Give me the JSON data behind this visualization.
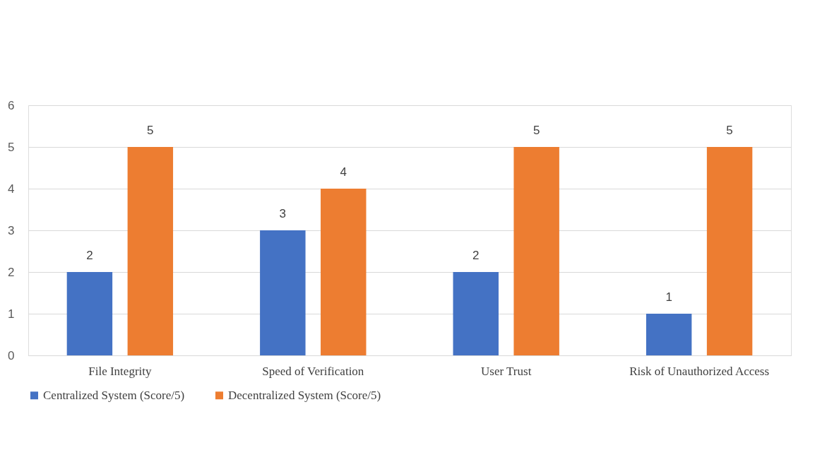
{
  "chart_data": {
    "type": "bar",
    "categories": [
      "File Integrity",
      "Speed of Verification",
      "User Trust",
      "Risk of Unauthorized Access"
    ],
    "series": [
      {
        "name": "Centralized System (Score/5)",
        "color": "#4472c4",
        "values": [
          2,
          3,
          2,
          1
        ]
      },
      {
        "name": "Decentralized System (Score/5)",
        "color": "#ed7d31",
        "values": [
          5,
          4,
          5,
          5
        ]
      }
    ],
    "ylim": [
      0,
      6
    ],
    "yticks": [
      0,
      1,
      2,
      3,
      4,
      5,
      6
    ],
    "grid": "y",
    "legend": "bottom",
    "data_labels": true
  }
}
